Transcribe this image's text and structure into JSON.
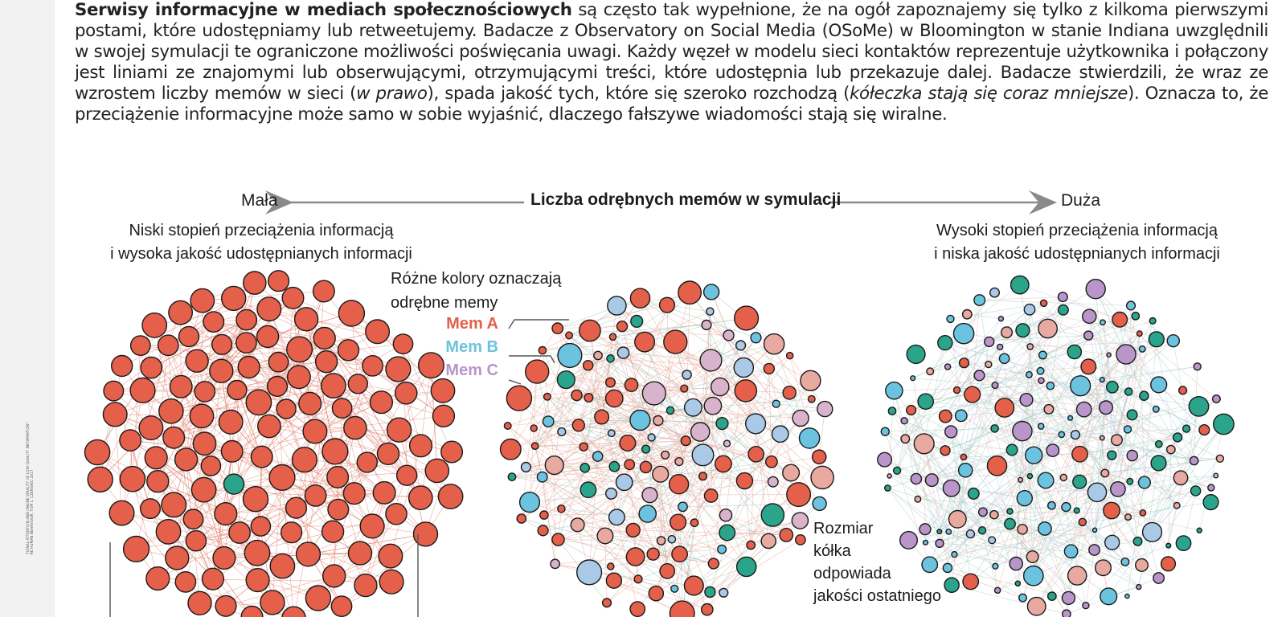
{
  "intro": {
    "lead": "Serwisy informacyjne w mediach społecznościowych",
    "part1": " są często tak wypełnione, że na ogół zapoznajemy się tylko z kilkoma pierwszymi postami, które udostępniamy lub retweetujemy. Badacze z Observatory on Social Media (OSoMe) w Bloomington w stanie Indiana uwzględnili w swojej symulacji te ograniczone możliwości poświęcania uwagi. Każdy węzeł w modelu sieci kontaktów reprezentuje użytkownika i połączony jest liniami ze znajomymi lub obserwującymi, otrzymującymi treści, które udostępnia lub przekazuje dalej. Badacze stwierdzili, że wraz ze wzrostem liczby memów w sieci (",
    "italic1": "w prawo",
    "part2": "), spada jakość tych, które się szeroko rozchodzą (",
    "italic2": "kółeczka stają się coraz mniejsze",
    "part3": "). Oznacza to, że przeciążenie informacyjne może samo w sobie wyjaśnić, dlaczego fałszywe wiadomości stają się wiralne."
  },
  "axis": {
    "left": "Mała",
    "title": "Liczba odrębnych memów w symulacji",
    "right": "Duża"
  },
  "panels": {
    "left_title": [
      "Niski stopień przeciążenia informacją",
      "i wysoka jakość udostępnianych informacji"
    ],
    "right_title": [
      "Wysoki stopień przeciążenia informacją",
      "i niska jakość udostępnianych informacji"
    ]
  },
  "legend": {
    "title": [
      "Różne kolory oznaczają",
      "odrębne memy"
    ],
    "items": [
      {
        "label": "Mem A",
        "color": "#e4604a"
      },
      {
        "label": "Mem B",
        "color": "#6cc3df"
      },
      {
        "label": "Mem C",
        "color": "#b995c9"
      }
    ],
    "extra_colors": [
      "#2aa48a",
      "#e8a9a0",
      "#d9b3cc",
      "#a9c9e6"
    ]
  },
  "size_note": [
    "Rozmiar",
    "kółka",
    "odpowiada",
    "jakości ostatniego"
  ],
  "credit": [
    "TIONAL ATTENTION AND ONLINE VIRALITY OF LOW-QUALITY INFORMATION\",",
    "RE HUMAN BEHAVIOUR, TOM 1, CZERWIEC 2017"
  ]
}
